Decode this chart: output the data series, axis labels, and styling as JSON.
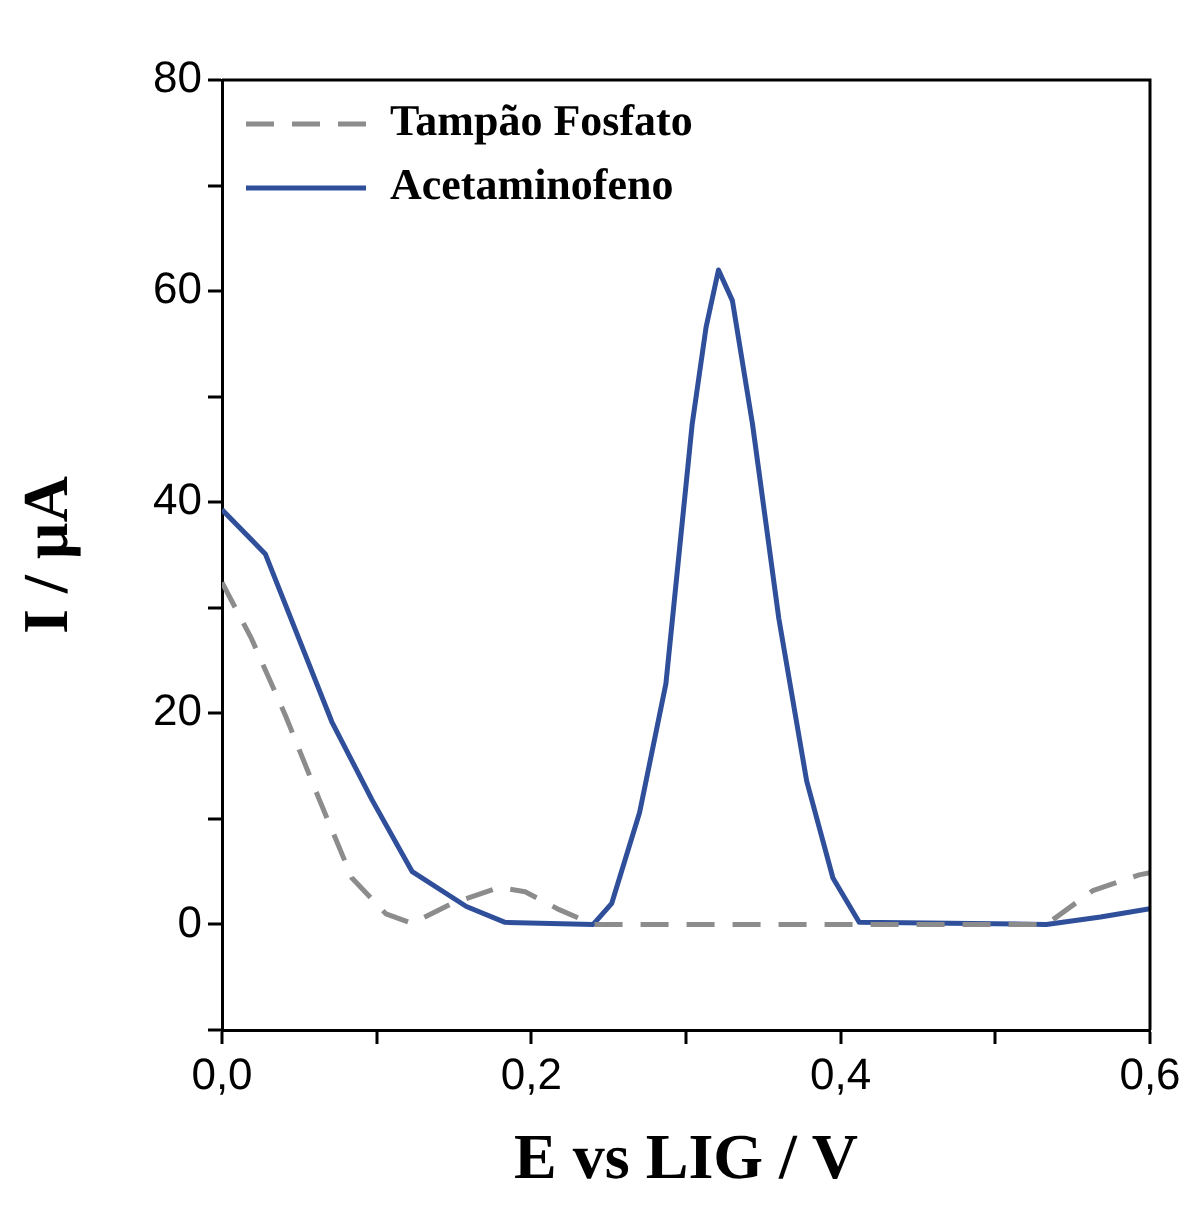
{
  "chart_data": {
    "type": "line",
    "xlabel": "E vs LIG / V",
    "ylabel": "I / µA",
    "xlim": [
      0,
      0.6
    ],
    "ylim": [
      -10,
      80
    ],
    "xticks": [
      {
        "value": 0,
        "label": "0,0"
      },
      {
        "value": 0.1,
        "label": null
      },
      {
        "value": 0.2,
        "label": "0,2"
      },
      {
        "value": 0.3,
        "label": null
      },
      {
        "value": 0.4,
        "label": "0,4"
      },
      {
        "value": 0.5,
        "label": null
      },
      {
        "value": 0.6,
        "label": "0,6"
      }
    ],
    "yticks": [
      {
        "value": -10,
        "label": null
      },
      0,
      {
        "value": 10,
        "label": null
      },
      20,
      {
        "value": 30,
        "label": null
      },
      40,
      {
        "value": 50,
        "label": null
      },
      60,
      {
        "value": 70,
        "label": null
      },
      80
    ],
    "grid": false,
    "legend": "top left",
    "marker": "none",
    "series": [
      {
        "name": "Tampão Fosfato",
        "color": "#8c8c8c",
        "line_style": "dashed",
        "x": [
          0,
          0.019,
          0.041,
          0.063,
          0.084,
          0.106,
          0.123,
          0.149,
          0.179,
          0.196,
          0.218,
          0.24,
          0.3,
          0.4,
          0.533,
          0.563,
          0.593,
          0.6
        ],
        "values": [
          32.4,
          27.1,
          19.8,
          11.8,
          4.4,
          1.0,
          0.1,
          2,
          3.5,
          3.1,
          1.4,
          0,
          0,
          0,
          0,
          3.2,
          4.7,
          4.9
        ]
      },
      {
        "name": "Acetaminofeno",
        "color": "#2f4f9a",
        "line_style": "solid",
        "x": [
          0,
          0.028,
          0.071,
          0.097,
          0.123,
          0.158,
          0.183,
          0.24,
          0.252,
          0.27,
          0.287,
          0.304,
          0.313,
          0.321,
          0.33,
          0.343,
          0.36,
          0.378,
          0.395,
          0.412,
          0.533,
          0.568,
          0.6
        ],
        "values": [
          39.3,
          35.1,
          19.2,
          11.8,
          5.0,
          1.7,
          0.2,
          0,
          2,
          10.6,
          22.8,
          47.4,
          56.6,
          62,
          59.1,
          47.4,
          29,
          13.6,
          4.4,
          0.2,
          0,
          0.7,
          1.5
        ]
      }
    ]
  }
}
